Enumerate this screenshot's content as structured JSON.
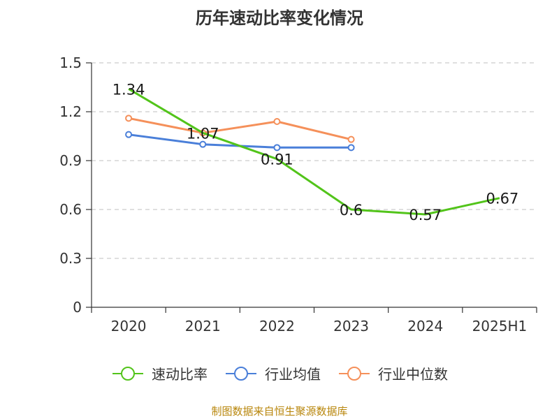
{
  "chart_data": {
    "type": "line",
    "title": "历年速动比率变化情况",
    "categories": [
      "2020",
      "2021",
      "2022",
      "2023",
      "2024",
      "2025H1"
    ],
    "ylim": [
      0,
      1.5
    ],
    "yticks": [
      "0",
      "0.3",
      "0.6",
      "0.9",
      "1.2",
      "1.5"
    ],
    "grid": true,
    "legend_position": "bottom",
    "series": [
      {
        "name": "速动比率",
        "color": "#52c41a",
        "values": [
          1.34,
          1.07,
          0.91,
          0.6,
          0.57,
          0.67
        ],
        "labels": [
          "1.34",
          "1.07",
          "0.91",
          "0.6",
          "0.57",
          "0.67"
        ]
      },
      {
        "name": "行业均值",
        "color": "#4a7fd9",
        "values": [
          1.06,
          1.0,
          0.98,
          0.98,
          null,
          null
        ]
      },
      {
        "name": "行业中位数",
        "color": "#f5905a",
        "values": [
          1.16,
          1.07,
          1.14,
          1.03,
          null,
          null
        ]
      }
    ]
  },
  "source_text": "制图数据来自恒生聚源数据库"
}
